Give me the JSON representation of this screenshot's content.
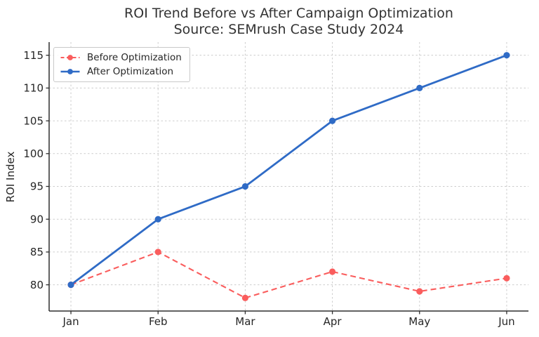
{
  "chart_data": {
    "type": "line",
    "title": "ROI Trend Before vs After Campaign Optimization",
    "subtitle": "Source: SEMrush Case Study 2024",
    "categories": [
      "Jan",
      "Feb",
      "Mar",
      "Apr",
      "May",
      "Jun"
    ],
    "series": [
      {
        "name": "Before Optimization",
        "values": [
          80,
          85,
          78,
          82,
          79,
          81
        ],
        "color": "#fa5d5d",
        "line_style": "dashed",
        "marker": "circle"
      },
      {
        "name": "After Optimization",
        "values": [
          80,
          90,
          95,
          105,
          110,
          115
        ],
        "color": "#2f6bc6",
        "line_style": "solid",
        "marker": "circle"
      }
    ],
    "xlabel": "",
    "ylabel": "ROI Index",
    "yticks": [
      80,
      85,
      90,
      95,
      100,
      105,
      110,
      115
    ],
    "ylim": [
      76,
      117
    ],
    "grid": true,
    "grid_color": "#cccccc",
    "legend_position": "upper left"
  }
}
